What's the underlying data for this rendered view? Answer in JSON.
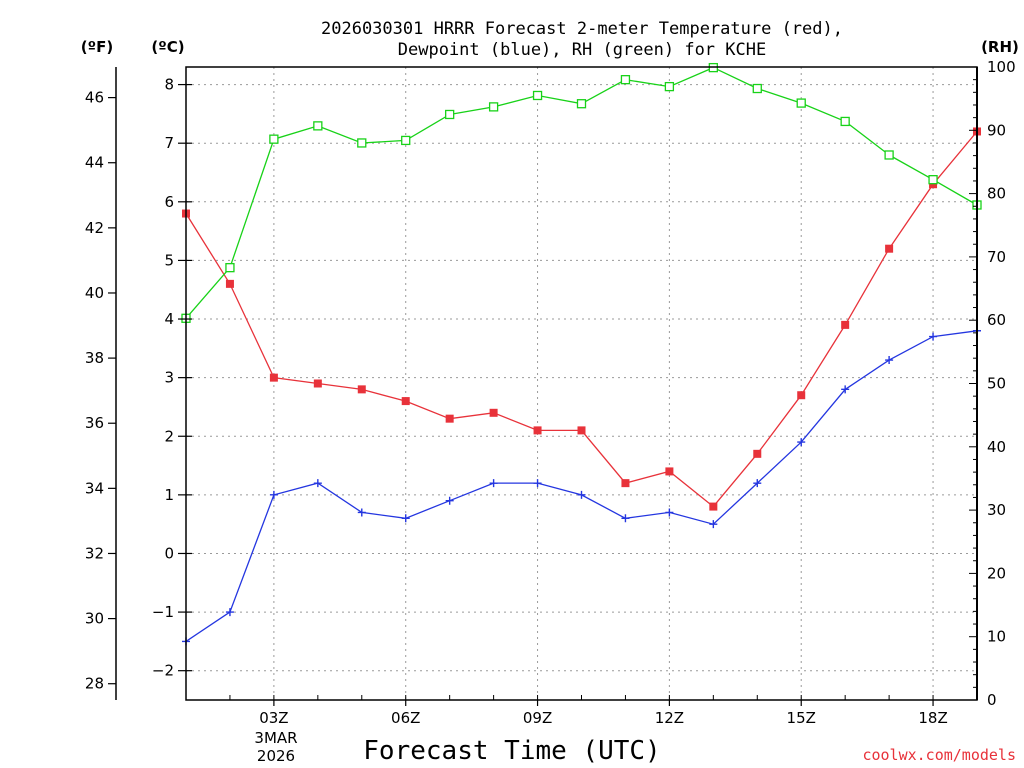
{
  "chart_data": {
    "type": "line",
    "title_line1": "2026030301 HRRR Forecast 2-meter Temperature (red),",
    "title_line2": "Dewpoint (blue), RH (green) for KCHE",
    "xlabel": "Forecast Time (UTC)",
    "unit_left_outer": "(ºF)",
    "unit_left_inner": "(ºC)",
    "unit_right": "(RH)",
    "credit": "coolwx.com/models",
    "date_label_1": "3MAR",
    "date_label_2": "2026",
    "x_hours": [
      1,
      2,
      3,
      4,
      5,
      6,
      7,
      8,
      9,
      10,
      11,
      12,
      13,
      14,
      15,
      16,
      17,
      18,
      19
    ],
    "x_range": [
      1,
      19
    ],
    "x_ticks": [
      {
        "hour": 3,
        "label": "03Z"
      },
      {
        "hour": 6,
        "label": "06Z"
      },
      {
        "hour": 9,
        "label": "09Z"
      },
      {
        "hour": 12,
        "label": "12Z"
      },
      {
        "hour": 15,
        "label": "15Z"
      },
      {
        "hour": 18,
        "label": "18Z"
      }
    ],
    "ylim_c": [
      -2.5,
      8.3
    ],
    "yticks_c": [
      -2,
      -1,
      0,
      1,
      2,
      3,
      4,
      5,
      6,
      7,
      8
    ],
    "yticks_f": [
      28,
      30,
      32,
      34,
      36,
      38,
      40,
      42,
      44,
      46
    ],
    "ylim_rh": [
      0,
      100
    ],
    "yticks_rh": [
      0,
      10,
      20,
      30,
      40,
      50,
      60,
      70,
      80,
      90,
      100
    ],
    "grid": true,
    "series": [
      {
        "name": "Temperature",
        "units": "C",
        "color": "#e8323a",
        "marker": "filled-square",
        "values": [
          5.8,
          4.6,
          3.0,
          2.9,
          2.8,
          2.6,
          2.3,
          2.4,
          2.1,
          2.1,
          1.2,
          1.4,
          0.8,
          1.7,
          2.7,
          3.9,
          5.2,
          6.3,
          7.2
        ]
      },
      {
        "name": "Dewpoint",
        "units": "C",
        "color": "#2436e0",
        "marker": "plus",
        "values": [
          -1.5,
          -1.0,
          1.0,
          1.2,
          0.7,
          0.6,
          0.9,
          1.2,
          1.2,
          1.0,
          0.6,
          0.7,
          0.5,
          1.2,
          1.9,
          2.8,
          3.3,
          3.7,
          3.8
        ]
      },
      {
        "name": "RH",
        "units": "%",
        "color": "#18d218",
        "marker": "open-square",
        "values": [
          60.3,
          68.3,
          88.6,
          90.7,
          88.0,
          88.4,
          92.5,
          93.7,
          95.5,
          94.2,
          98.0,
          96.9,
          99.9,
          96.6,
          94.3,
          91.4,
          86.1,
          82.2,
          78.2
        ]
      }
    ]
  }
}
